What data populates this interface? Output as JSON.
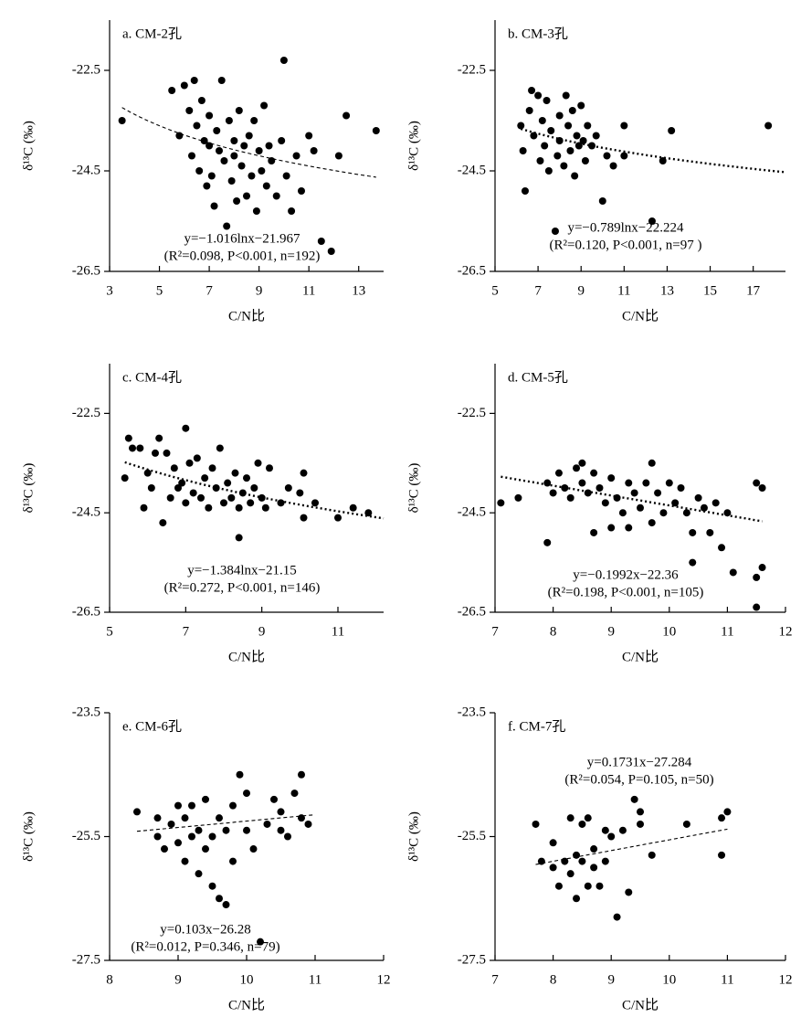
{
  "chart_data": [
    {
      "type": "scatter",
      "title": "a. CM-2孔",
      "xlabel": "C/N比",
      "ylabel": "δ¹³C (‰)",
      "xlim": [
        3,
        14
      ],
      "xticks": [
        3,
        5,
        7,
        9,
        11,
        13
      ],
      "ylim": [
        -26.5,
        -21.5
      ],
      "yticks": [
        -22.5,
        -24.5,
        -26.5
      ],
      "color": "#000000",
      "equation": "y=−1.016lnx−21.967",
      "stats": "(R²=0.098, P<0.001, n=192)",
      "fit": {
        "kind": "log",
        "slope": -1.016,
        "intercept": -21.967,
        "from": 3.5,
        "to": 13.7,
        "style": "dashed"
      },
      "points": [
        [
          3.5,
          -23.5
        ],
        [
          5.5,
          -22.9
        ],
        [
          5.8,
          -23.8
        ],
        [
          6.0,
          -22.8
        ],
        [
          6.2,
          -23.3
        ],
        [
          6.3,
          -24.2
        ],
        [
          6.4,
          -22.7
        ],
        [
          6.5,
          -23.6
        ],
        [
          6.6,
          -24.5
        ],
        [
          6.7,
          -23.1
        ],
        [
          6.8,
          -23.9
        ],
        [
          6.9,
          -24.8
        ],
        [
          7.0,
          -24.0
        ],
        [
          7.0,
          -23.4
        ],
        [
          7.1,
          -24.6
        ],
        [
          7.2,
          -25.2
        ],
        [
          7.3,
          -23.7
        ],
        [
          7.4,
          -24.1
        ],
        [
          7.5,
          -22.7
        ],
        [
          7.6,
          -24.3
        ],
        [
          7.7,
          -25.6
        ],
        [
          7.8,
          -23.5
        ],
        [
          7.9,
          -24.7
        ],
        [
          8.0,
          -23.9
        ],
        [
          8.0,
          -24.2
        ],
        [
          8.1,
          -25.1
        ],
        [
          8.2,
          -23.3
        ],
        [
          8.3,
          -24.4
        ],
        [
          8.4,
          -24.0
        ],
        [
          8.5,
          -25.0
        ],
        [
          8.6,
          -23.8
        ],
        [
          8.7,
          -24.6
        ],
        [
          8.8,
          -23.5
        ],
        [
          8.9,
          -25.3
        ],
        [
          9.0,
          -24.1
        ],
        [
          9.1,
          -24.5
        ],
        [
          9.2,
          -23.2
        ],
        [
          9.3,
          -24.8
        ],
        [
          9.4,
          -24.0
        ],
        [
          9.5,
          -24.3
        ],
        [
          9.7,
          -25.0
        ],
        [
          9.9,
          -23.9
        ],
        [
          10.0,
          -22.3
        ],
        [
          10.1,
          -24.6
        ],
        [
          10.3,
          -25.3
        ],
        [
          10.5,
          -24.2
        ],
        [
          10.7,
          -24.9
        ],
        [
          11.0,
          -23.8
        ],
        [
          11.2,
          -24.1
        ],
        [
          11.5,
          -25.9
        ],
        [
          11.9,
          -26.1
        ],
        [
          12.2,
          -24.2
        ],
        [
          12.5,
          -23.4
        ],
        [
          13.7,
          -23.7
        ]
      ]
    },
    {
      "type": "scatter",
      "title": "b. CM-3孔",
      "xlabel": "C/N比",
      "ylabel": "δ¹³C (‰)",
      "xlim": [
        5,
        18.5
      ],
      "xticks": [
        5,
        7,
        9,
        11,
        13,
        15,
        17
      ],
      "ylim": [
        -26.5,
        -21.5
      ],
      "yticks": [
        -22.5,
        -24.5,
        -26.5
      ],
      "color": "#000000",
      "equation": "y=−0.789lnx−22.224",
      "stats": "(R²=0.120, P<0.001, n=97 )",
      "fit": {
        "kind": "log",
        "slope": -0.789,
        "intercept": -22.224,
        "from": 6.2,
        "to": 18.5,
        "style": "dotted"
      },
      "points": [
        [
          6.2,
          -23.6
        ],
        [
          6.3,
          -24.1
        ],
        [
          6.4,
          -24.9
        ],
        [
          6.6,
          -23.3
        ],
        [
          6.7,
          -22.9
        ],
        [
          6.8,
          -23.8
        ],
        [
          7.0,
          -23.0
        ],
        [
          7.1,
          -24.3
        ],
        [
          7.2,
          -23.5
        ],
        [
          7.3,
          -24.0
        ],
        [
          7.4,
          -23.1
        ],
        [
          7.5,
          -24.5
        ],
        [
          7.6,
          -23.7
        ],
        [
          7.8,
          -25.7
        ],
        [
          7.9,
          -24.2
        ],
        [
          8.0,
          -23.4
        ],
        [
          8.0,
          -23.9
        ],
        [
          8.2,
          -24.4
        ],
        [
          8.3,
          -23.0
        ],
        [
          8.4,
          -23.6
        ],
        [
          8.5,
          -24.1
        ],
        [
          8.6,
          -23.3
        ],
        [
          8.7,
          -24.6
        ],
        [
          8.8,
          -23.8
        ],
        [
          8.9,
          -24.0
        ],
        [
          9.0,
          -23.2
        ],
        [
          9.1,
          -23.9
        ],
        [
          9.2,
          -24.3
        ],
        [
          9.3,
          -23.6
        ],
        [
          9.5,
          -24.0
        ],
        [
          9.7,
          -23.8
        ],
        [
          10.0,
          -25.1
        ],
        [
          10.2,
          -24.2
        ],
        [
          10.5,
          -24.4
        ],
        [
          11.0,
          -23.6
        ],
        [
          11.0,
          -24.2
        ],
        [
          12.3,
          -25.5
        ],
        [
          12.8,
          -24.3
        ],
        [
          13.2,
          -23.7
        ],
        [
          17.7,
          -23.6
        ]
      ]
    },
    {
      "type": "scatter",
      "title": "c. CM-4孔",
      "xlabel": "C/N比",
      "ylabel": "δ¹³C (‰)",
      "xlim": [
        5,
        12.2
      ],
      "xticks": [
        5,
        7,
        9,
        11
      ],
      "ylim": [
        -26.5,
        -21.5
      ],
      "yticks": [
        -22.5,
        -24.5,
        -26.5
      ],
      "color": "#000000",
      "equation": "y=−1.384lnx−21.15",
      "stats": "(R²=0.272, P<0.001, n=146)",
      "fit": {
        "kind": "log",
        "slope": -1.384,
        "intercept": -21.15,
        "from": 5.4,
        "to": 12.2,
        "style": "dotted"
      },
      "points": [
        [
          5.4,
          -23.8
        ],
        [
          5.5,
          -23.0
        ],
        [
          5.6,
          -23.2
        ],
        [
          5.8,
          -23.2
        ],
        [
          5.9,
          -24.4
        ],
        [
          6.0,
          -23.7
        ],
        [
          6.1,
          -24.0
        ],
        [
          6.2,
          -23.3
        ],
        [
          6.3,
          -23.0
        ],
        [
          6.4,
          -24.7
        ],
        [
          6.5,
          -23.3
        ],
        [
          6.6,
          -24.2
        ],
        [
          6.7,
          -23.6
        ],
        [
          6.8,
          -24.0
        ],
        [
          6.9,
          -23.9
        ],
        [
          7.0,
          -22.8
        ],
        [
          7.0,
          -24.3
        ],
        [
          7.1,
          -23.5
        ],
        [
          7.2,
          -24.1
        ],
        [
          7.3,
          -23.4
        ],
        [
          7.4,
          -24.2
        ],
        [
          7.5,
          -23.8
        ],
        [
          7.6,
          -24.4
        ],
        [
          7.7,
          -23.6
        ],
        [
          7.8,
          -24.0
        ],
        [
          7.9,
          -23.2
        ],
        [
          8.0,
          -24.3
        ],
        [
          8.1,
          -23.9
        ],
        [
          8.2,
          -24.2
        ],
        [
          8.3,
          -23.7
        ],
        [
          8.4,
          -24.4
        ],
        [
          8.4,
          -25.0
        ],
        [
          8.5,
          -24.1
        ],
        [
          8.6,
          -23.8
        ],
        [
          8.7,
          -24.3
        ],
        [
          8.8,
          -24.0
        ],
        [
          8.9,
          -23.5
        ],
        [
          9.0,
          -24.2
        ],
        [
          9.1,
          -24.4
        ],
        [
          9.2,
          -23.6
        ],
        [
          9.5,
          -24.3
        ],
        [
          9.7,
          -24.0
        ],
        [
          10.0,
          -24.1
        ],
        [
          10.1,
          -24.6
        ],
        [
          10.1,
          -23.7
        ],
        [
          10.4,
          -24.3
        ],
        [
          11.0,
          -24.6
        ],
        [
          11.4,
          -24.4
        ],
        [
          11.8,
          -24.5
        ]
      ]
    },
    {
      "type": "scatter",
      "title": "d. CM-5孔",
      "xlabel": "C/N比",
      "ylabel": "δ¹³C (‰)",
      "xlim": [
        7,
        12
      ],
      "xticks": [
        7,
        8,
        9,
        10,
        11,
        12
      ],
      "ylim": [
        -26.5,
        -21.5
      ],
      "yticks": [
        -22.5,
        -24.5,
        -26.5
      ],
      "color": "#000000",
      "equation": "y=−0.1992x−22.36",
      "stats": "(R²=0.198, P<0.001, n=105)",
      "fit": {
        "kind": "linear",
        "slope": -0.1992,
        "intercept": -22.36,
        "from": 7.1,
        "to": 11.6,
        "style": "dotted"
      },
      "points": [
        [
          7.1,
          -24.3
        ],
        [
          7.4,
          -24.2
        ],
        [
          7.9,
          -23.9
        ],
        [
          7.9,
          -25.1
        ],
        [
          8.0,
          -24.1
        ],
        [
          8.1,
          -23.7
        ],
        [
          8.2,
          -24.0
        ],
        [
          8.3,
          -24.2
        ],
        [
          8.4,
          -23.6
        ],
        [
          8.5,
          -23.5
        ],
        [
          8.5,
          -23.9
        ],
        [
          8.6,
          -24.1
        ],
        [
          8.7,
          -23.7
        ],
        [
          8.7,
          -24.9
        ],
        [
          8.8,
          -24.0
        ],
        [
          8.9,
          -24.3
        ],
        [
          9.0,
          -23.8
        ],
        [
          9.0,
          -24.8
        ],
        [
          9.1,
          -24.2
        ],
        [
          9.2,
          -24.5
        ],
        [
          9.3,
          -23.9
        ],
        [
          9.3,
          -24.8
        ],
        [
          9.4,
          -24.1
        ],
        [
          9.5,
          -24.4
        ],
        [
          9.6,
          -23.9
        ],
        [
          9.7,
          -23.5
        ],
        [
          9.7,
          -24.7
        ],
        [
          9.8,
          -24.1
        ],
        [
          9.9,
          -24.5
        ],
        [
          10.0,
          -23.9
        ],
        [
          10.1,
          -24.3
        ],
        [
          10.2,
          -24.0
        ],
        [
          10.3,
          -24.5
        ],
        [
          10.4,
          -25.5
        ],
        [
          10.4,
          -24.9
        ],
        [
          10.5,
          -24.2
        ],
        [
          10.6,
          -24.4
        ],
        [
          10.7,
          -24.9
        ],
        [
          10.8,
          -24.3
        ],
        [
          10.9,
          -25.2
        ],
        [
          11.0,
          -24.5
        ],
        [
          11.1,
          -25.7
        ],
        [
          11.5,
          -23.9
        ],
        [
          11.5,
          -25.8
        ],
        [
          11.6,
          -25.6
        ],
        [
          11.5,
          -26.4
        ],
        [
          11.6,
          -24.0
        ]
      ]
    },
    {
      "type": "scatter",
      "title": "e. CM-6孔",
      "xlabel": "C/N比",
      "ylabel": "δ¹³C (‰)",
      "xlim": [
        8,
        12
      ],
      "xticks": [
        8,
        9,
        10,
        11,
        12
      ],
      "ylim": [
        -27.5,
        -23.5
      ],
      "yticks": [
        -23.5,
        -25.5,
        -27.5
      ],
      "color": "#000000",
      "equation": "y=0.103x−26.28",
      "stats": "(R²=0.012, P=0.346, n=79)",
      "fit": {
        "kind": "linear",
        "slope": 0.103,
        "intercept": -26.28,
        "from": 8.4,
        "to": 11,
        "style": "dashed"
      },
      "points": [
        [
          8.4,
          -25.1
        ],
        [
          8.7,
          -25.2
        ],
        [
          8.7,
          -25.5
        ],
        [
          8.8,
          -25.7
        ],
        [
          8.9,
          -25.3
        ],
        [
          9.0,
          -25.0
        ],
        [
          9.0,
          -25.6
        ],
        [
          9.1,
          -25.9
        ],
        [
          9.1,
          -25.2
        ],
        [
          9.2,
          -25.5
        ],
        [
          9.2,
          -25.0
        ],
        [
          9.3,
          -26.1
        ],
        [
          9.3,
          -25.4
        ],
        [
          9.4,
          -25.7
        ],
        [
          9.4,
          -24.9
        ],
        [
          9.5,
          -26.3
        ],
        [
          9.5,
          -25.5
        ],
        [
          9.6,
          -25.2
        ],
        [
          9.6,
          -26.5
        ],
        [
          9.7,
          -25.4
        ],
        [
          9.7,
          -26.6
        ],
        [
          9.8,
          -25.0
        ],
        [
          9.8,
          -25.9
        ],
        [
          9.9,
          -24.5
        ],
        [
          10.0,
          -24.8
        ],
        [
          10.0,
          -25.4
        ],
        [
          10.1,
          -25.7
        ],
        [
          10.2,
          -27.2
        ],
        [
          10.3,
          -25.3
        ],
        [
          10.4,
          -24.9
        ],
        [
          10.5,
          -25.1
        ],
        [
          10.6,
          -25.5
        ],
        [
          10.7,
          -24.8
        ],
        [
          10.8,
          -24.5
        ],
        [
          10.8,
          -25.2
        ],
        [
          10.9,
          -25.3
        ],
        [
          10.5,
          -25.4
        ]
      ]
    },
    {
      "type": "scatter",
      "title": "f. CM-7孔",
      "xlabel": "C/N比",
      "ylabel": "δ¹³C (‰)",
      "xlim": [
        7,
        12
      ],
      "xticks": [
        7,
        8,
        9,
        10,
        11,
        12
      ],
      "ylim": [
        -27.5,
        -23.5
      ],
      "yticks": [
        -23.5,
        -25.5,
        -27.5
      ],
      "color": "#000000",
      "equation": "y=0.1731x−27.284",
      "stats": "(R²=0.054, P=0.105, n=50)",
      "fit": {
        "kind": "linear",
        "slope": 0.1731,
        "intercept": -27.284,
        "from": 7.7,
        "to": 11,
        "style": "dashed"
      },
      "points": [
        [
          7.7,
          -25.3
        ],
        [
          7.8,
          -25.9
        ],
        [
          8.0,
          -25.6
        ],
        [
          8.1,
          -26.3
        ],
        [
          8.2,
          -25.9
        ],
        [
          8.3,
          -25.2
        ],
        [
          8.3,
          -26.1
        ],
        [
          8.4,
          -25.8
        ],
        [
          8.4,
          -26.5
        ],
        [
          8.5,
          -25.3
        ],
        [
          8.5,
          -25.9
        ],
        [
          8.6,
          -26.3
        ],
        [
          8.7,
          -25.7
        ],
        [
          8.7,
          -26.0
        ],
        [
          8.8,
          -26.3
        ],
        [
          8.9,
          -25.4
        ],
        [
          8.9,
          -25.9
        ],
        [
          9.0,
          -25.5
        ],
        [
          9.1,
          -26.8
        ],
        [
          9.2,
          -25.4
        ],
        [
          9.3,
          -26.4
        ],
        [
          9.4,
          -24.9
        ],
        [
          9.5,
          -25.3
        ],
        [
          9.5,
          -25.1
        ],
        [
          9.7,
          -25.8
        ],
        [
          10.3,
          -25.3
        ],
        [
          10.9,
          -25.2
        ],
        [
          10.9,
          -25.8
        ],
        [
          11.0,
          -25.1
        ],
        [
          8.6,
          -25.2
        ],
        [
          8.0,
          -26.0
        ]
      ]
    }
  ]
}
